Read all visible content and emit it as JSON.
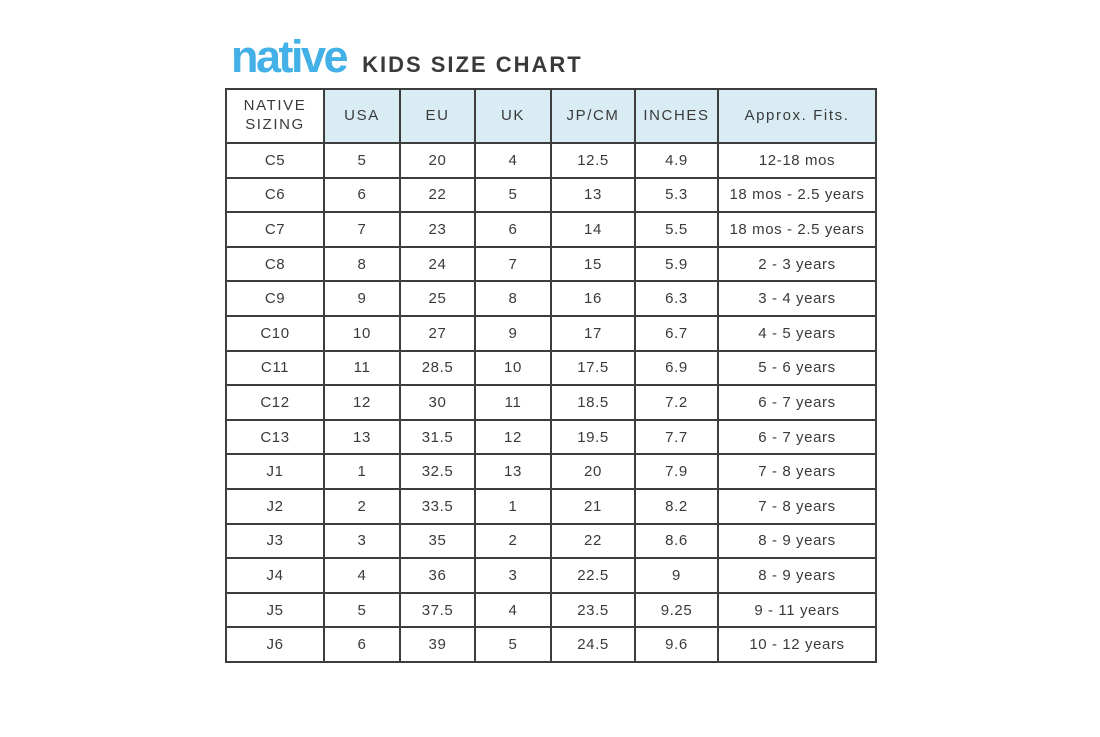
{
  "brand": {
    "logo_text": "native",
    "title": "KIDS SIZE CHART"
  },
  "colors": {
    "logo_blue": "#43b1e7",
    "header_cell_bg": "#d9ecf3",
    "table_border": "#3d3d3d",
    "text": "#3a3a3a",
    "page_bg": "#ffffff"
  },
  "table": {
    "columns": [
      "NATIVE SIZING",
      "USA",
      "EU",
      "UK",
      "JP/CM",
      "INCHES",
      "Approx. Fits."
    ],
    "rows": [
      [
        "C5",
        "5",
        "20",
        "4",
        "12.5",
        "4.9",
        "12-18 mos"
      ],
      [
        "C6",
        "6",
        "22",
        "5",
        "13",
        "5.3",
        "18 mos - 2.5 years"
      ],
      [
        "C7",
        "7",
        "23",
        "6",
        "14",
        "5.5",
        "18 mos - 2.5 years"
      ],
      [
        "C8",
        "8",
        "24",
        "7",
        "15",
        "5.9",
        "2 - 3 years"
      ],
      [
        "C9",
        "9",
        "25",
        "8",
        "16",
        "6.3",
        "3 - 4 years"
      ],
      [
        "C10",
        "10",
        "27",
        "9",
        "17",
        "6.7",
        "4 - 5 years"
      ],
      [
        "C11",
        "11",
        "28.5",
        "10",
        "17.5",
        "6.9",
        "5 - 6 years"
      ],
      [
        "C12",
        "12",
        "30",
        "11",
        "18.5",
        "7.2",
        "6 - 7 years"
      ],
      [
        "C13",
        "13",
        "31.5",
        "12",
        "19.5",
        "7.7",
        "6 - 7 years"
      ],
      [
        "J1",
        "1",
        "32.5",
        "13",
        "20",
        "7.9",
        "7 - 8 years"
      ],
      [
        "J2",
        "2",
        "33.5",
        "1",
        "21",
        "8.2",
        "7 - 8 years"
      ],
      [
        "J3",
        "3",
        "35",
        "2",
        "22",
        "8.6",
        "8 - 9 years"
      ],
      [
        "J4",
        "4",
        "36",
        "3",
        "22.5",
        "9",
        "8 - 9 years"
      ],
      [
        "J5",
        "5",
        "37.5",
        "4",
        "23.5",
        "9.25",
        "9 - 11 years"
      ],
      [
        "J6",
        "6",
        "39",
        "5",
        "24.5",
        "9.6",
        "10 - 12 years"
      ]
    ]
  }
}
